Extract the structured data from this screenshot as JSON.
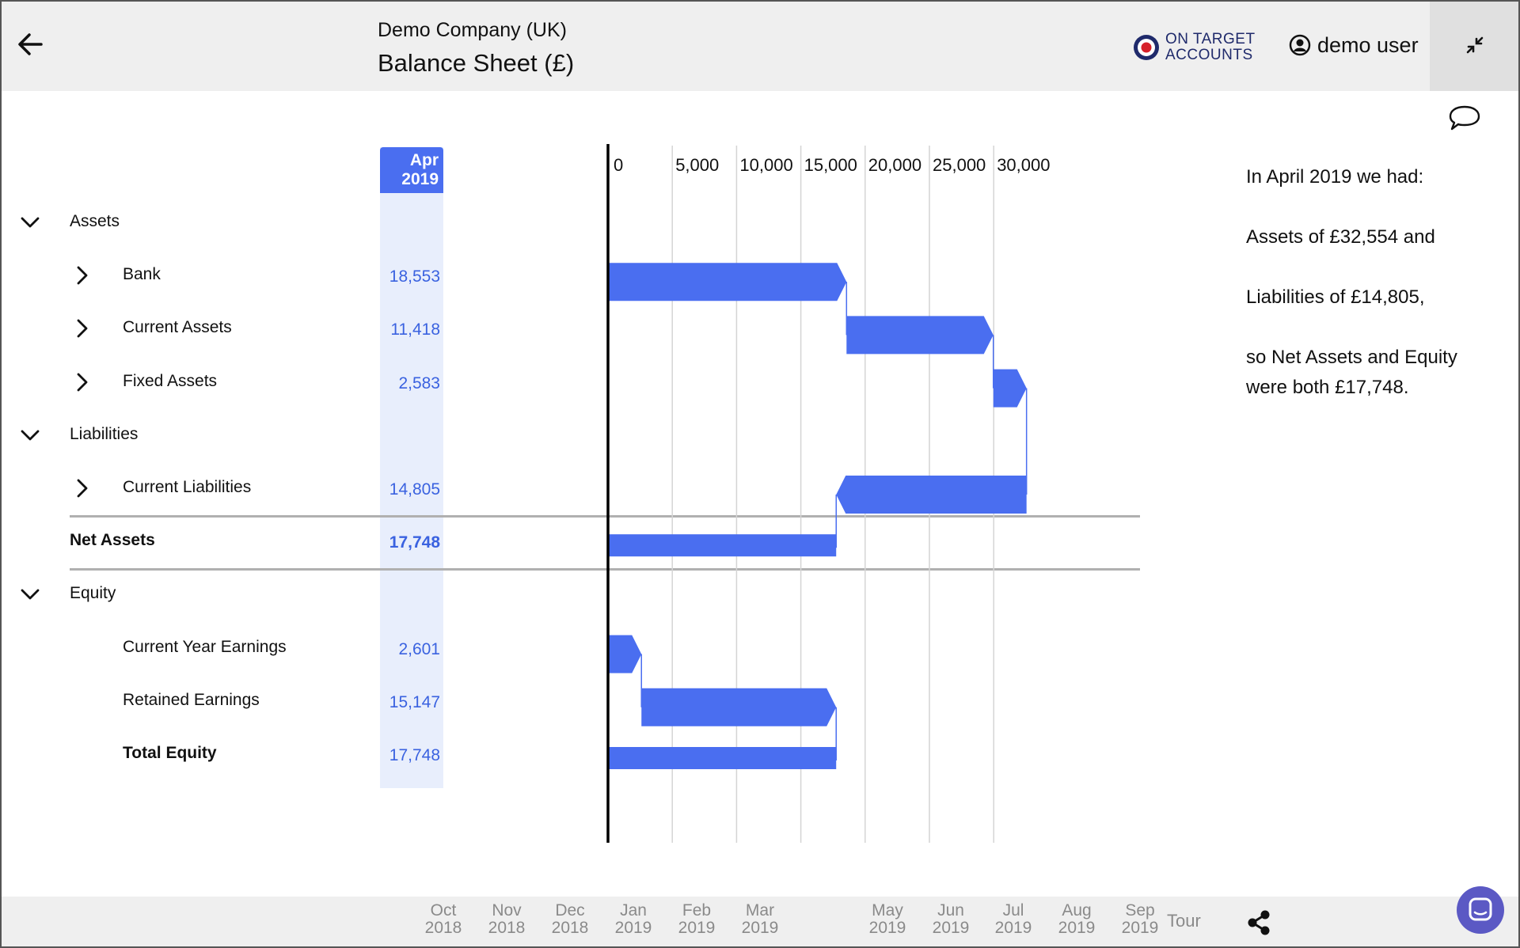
{
  "header": {
    "company": "Demo Company (UK)",
    "title": "Balance Sheet (£)",
    "logo_line1": "ON TARGET",
    "logo_line2": "ACCOUNTS",
    "user": "demo user",
    "icons": {
      "back": "back-arrow-icon",
      "user": "user-circle-icon",
      "collapse": "collapse-arrows-icon",
      "comment": "comment-bubble-icon"
    }
  },
  "column": {
    "line1": "Apr",
    "line2": "2019"
  },
  "rows": [
    {
      "label": "Assets",
      "value": "",
      "indent": 0,
      "chevron": "down",
      "bold": false
    },
    {
      "label": "Bank",
      "value": "18,553",
      "indent": 1,
      "chevron": "right",
      "bold": false
    },
    {
      "label": "Current Assets",
      "value": "11,418",
      "indent": 1,
      "chevron": "right",
      "bold": false
    },
    {
      "label": "Fixed Assets",
      "value": "2,583",
      "indent": 1,
      "chevron": "right",
      "bold": false
    },
    {
      "label": "Liabilities",
      "value": "",
      "indent": 0,
      "chevron": "down",
      "bold": false
    },
    {
      "label": "Current Liabilities",
      "value": "14,805",
      "indent": 1,
      "chevron": "right",
      "bold": false
    },
    {
      "label": "Net Assets",
      "value": "17,748",
      "indent": 0,
      "chevron": "",
      "bold": true
    },
    {
      "label": "Equity",
      "value": "",
      "indent": 0,
      "chevron": "down",
      "bold": false
    },
    {
      "label": "Current Year Earnings",
      "value": "2,601",
      "indent": 1,
      "chevron": "",
      "bold": false
    },
    {
      "label": "Retained Earnings",
      "value": "15,147",
      "indent": 1,
      "chevron": "",
      "bold": false
    },
    {
      "label": "Total Equity",
      "value": "17,748",
      "indent": 1,
      "chevron": "",
      "bold": true
    }
  ],
  "chart_data": {
    "type": "bar",
    "subtype": "waterfall",
    "xlim": [
      0,
      33000
    ],
    "ticks": [
      0,
      5000,
      10000,
      15000,
      20000,
      25000,
      30000
    ],
    "tick_labels": [
      "0",
      "5,000",
      "10,000",
      "15,000",
      "20,000",
      "25,000",
      "30,000"
    ],
    "grid": true,
    "color": "#4a6ef0",
    "bars": [
      {
        "row": "Bank",
        "start": 0,
        "end": 18553,
        "kind": "arrow-right"
      },
      {
        "row": "Current Assets",
        "start": 18553,
        "end": 29971,
        "kind": "arrow-right"
      },
      {
        "row": "Fixed Assets",
        "start": 29971,
        "end": 32554,
        "kind": "arrow-right"
      },
      {
        "row": "Current Liabilities",
        "start": 17749,
        "end": 32554,
        "kind": "arrow-left"
      },
      {
        "row": "Net Assets",
        "start": 0,
        "end": 17748,
        "kind": "total"
      },
      {
        "row": "Current Year Earnings",
        "start": 0,
        "end": 2601,
        "kind": "arrow-right"
      },
      {
        "row": "Retained Earnings",
        "start": 2601,
        "end": 17748,
        "kind": "arrow-right"
      },
      {
        "row": "Total Equity",
        "start": 0,
        "end": 17748,
        "kind": "total"
      }
    ]
  },
  "summary": {
    "line1": "In April 2019 we had:",
    "line2": "Assets of £32,554 and",
    "line3": "Liabilities of £14,805,",
    "line4": "so Net Assets and Equity were both £17,748."
  },
  "footer": {
    "months": [
      {
        "m": "Oct",
        "y": "2018"
      },
      {
        "m": "Nov",
        "y": "2018"
      },
      {
        "m": "Dec",
        "y": "2018"
      },
      {
        "m": "Jan",
        "y": "2019"
      },
      {
        "m": "Feb",
        "y": "2019"
      },
      {
        "m": "Mar",
        "y": "2019"
      },
      {
        "m": "May",
        "y": "2019"
      },
      {
        "m": "Jun",
        "y": "2019"
      },
      {
        "m": "Jul",
        "y": "2019"
      },
      {
        "m": "Aug",
        "y": "2019"
      },
      {
        "m": "Sep",
        "y": "2019"
      }
    ],
    "tour": "Tour",
    "icons": {
      "share": "share-icon",
      "chat": "chat-icon"
    }
  }
}
